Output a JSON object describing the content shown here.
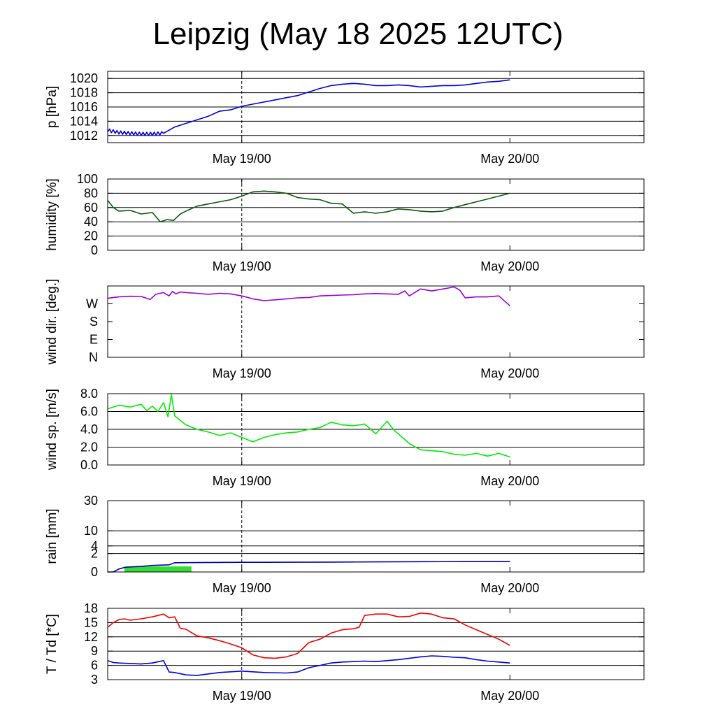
{
  "title": "Leipzig (May 18 2025 12UTC)",
  "colors": {
    "pressure": "#0000dd",
    "humidity": "#0a5a0a",
    "wind_dir": "#9900dd",
    "wind_speed": "#00ee00",
    "rain_sum": "#0000aa",
    "rain_rate": "#33dd33",
    "temperature": "#ee0000",
    "dewpoint": "#0000dd"
  },
  "chart_data": [
    {
      "type": "line",
      "ylabel": "p [hPa]",
      "x_tick_labels": [
        "May 19/00",
        "May 20/00"
      ],
      "x_ticks": [
        12,
        36
      ],
      "xlim": [
        0,
        48
      ],
      "dashed_at": 12,
      "ylim": [
        1011,
        1021
      ],
      "y_ticks": [
        1012,
        1014,
        1016,
        1018,
        1020
      ],
      "y_tick_labels": [
        "1012",
        "1014",
        "1016",
        "1018",
        "1020"
      ],
      "gridlines": [
        1012,
        1014,
        1016,
        1018,
        1020
      ],
      "series": [
        {
          "color_key": "pressure",
          "noisy_until": 5,
          "x": [
            0,
            1,
            2,
            3,
            4,
            5,
            6,
            7,
            8,
            9,
            10,
            11,
            12,
            13,
            14,
            15,
            16,
            17,
            18,
            19,
            20,
            21,
            22,
            23,
            24,
            25,
            26,
            27,
            28,
            29,
            30,
            31,
            32,
            33,
            34,
            35,
            36
          ],
          "y": [
            1012.7,
            1012.4,
            1012.3,
            1012.2,
            1012.2,
            1012.3,
            1013.2,
            1013.7,
            1014.2,
            1014.7,
            1015.4,
            1015.6,
            1016.1,
            1016.4,
            1016.7,
            1017.0,
            1017.3,
            1017.6,
            1018.1,
            1018.6,
            1019.0,
            1019.2,
            1019.3,
            1019.2,
            1019.0,
            1019.0,
            1019.1,
            1019.0,
            1018.8,
            1018.9,
            1019.0,
            1019.0,
            1019.1,
            1019.3,
            1019.5,
            1019.6,
            1019.8
          ]
        }
      ]
    },
    {
      "type": "line",
      "ylabel": "humidity [%]",
      "x_tick_labels": [
        "May 19/00",
        "May 20/00"
      ],
      "x_ticks": [
        12,
        36
      ],
      "xlim": [
        0,
        48
      ],
      "dashed_at": 12,
      "ylim": [
        0,
        100
      ],
      "y_ticks": [
        0,
        20,
        40,
        60,
        80,
        100
      ],
      "y_tick_labels": [
        "0",
        "20",
        "40",
        "60",
        "80",
        "100"
      ],
      "gridlines": [
        20,
        40,
        60,
        80
      ],
      "series": [
        {
          "color_key": "humidity",
          "x": [
            0,
            0.5,
            1,
            2,
            3,
            4,
            4.7,
            5.3,
            5.9,
            6.5,
            7,
            8,
            9,
            10,
            11,
            12,
            13,
            14,
            15,
            16,
            17,
            18,
            19,
            20,
            21,
            22,
            23,
            24,
            25,
            26,
            27,
            28,
            29,
            30,
            31,
            32,
            33,
            34,
            35,
            36
          ],
          "y": [
            70,
            60,
            55,
            56,
            51,
            53,
            40,
            43,
            42,
            51,
            55,
            62,
            65,
            68,
            71,
            76,
            82,
            83,
            82,
            80,
            74,
            72,
            71,
            66,
            65,
            52,
            54,
            52,
            54,
            58,
            57,
            55,
            54,
            55,
            60,
            64,
            68,
            72,
            76,
            80
          ]
        }
      ]
    },
    {
      "type": "line",
      "ylabel": "wind dir. [deg.]",
      "x_tick_labels": [
        "May 19/00",
        "May 20/00"
      ],
      "x_ticks": [
        12,
        36
      ],
      "xlim": [
        0,
        48
      ],
      "dashed_at": 12,
      "ylim": [
        0,
        360
      ],
      "y_ticks": [
        0,
        90,
        180,
        270
      ],
      "y_tick_labels": [
        "N",
        "E",
        "S",
        "W"
      ],
      "gridlines": [],
      "series": [
        {
          "color_key": "wind_dir",
          "x": [
            0,
            1,
            2,
            3,
            3.8,
            4.3,
            5,
            5.5,
            5.8,
            6.1,
            6.5,
            7,
            8,
            9,
            10,
            11,
            12,
            13,
            14,
            15,
            16,
            17,
            18,
            19,
            20,
            21,
            22,
            23,
            24,
            25,
            26,
            26.6,
            27,
            28,
            29,
            30,
            31,
            31.5,
            32,
            33,
            34,
            35,
            36
          ],
          "y": [
            298,
            305,
            308,
            307,
            292,
            318,
            327,
            310,
            333,
            320,
            330,
            327,
            323,
            318,
            323,
            320,
            310,
            295,
            286,
            290,
            295,
            300,
            302,
            310,
            312,
            314,
            316,
            320,
            322,
            320,
            318,
            335,
            310,
            345,
            335,
            345,
            355,
            340,
            300,
            305,
            305,
            310,
            260
          ]
        }
      ]
    },
    {
      "type": "line",
      "ylabel": "wind sp. [m/s]",
      "x_tick_labels": [
        "May 19/00",
        "May 20/00"
      ],
      "x_ticks": [
        12,
        36
      ],
      "xlim": [
        0,
        48
      ],
      "dashed_at": 12,
      "ylim": [
        0,
        8
      ],
      "y_ticks": [
        0,
        2,
        4,
        6,
        8
      ],
      "y_tick_labels": [
        "0.0",
        "2.0",
        "4.0",
        "6.0",
        "8.0"
      ],
      "gridlines": [
        2,
        4,
        6,
        8
      ],
      "series": [
        {
          "color_key": "wind_speed",
          "x": [
            0,
            1,
            2,
            3,
            3.5,
            4,
            4.5,
            5,
            5.4,
            5.7,
            6,
            7,
            8,
            9,
            10,
            11,
            12,
            13,
            14,
            15,
            16,
            17,
            18,
            19,
            20,
            21,
            22,
            23,
            24,
            25,
            25.7,
            26,
            27,
            28,
            29,
            30,
            31,
            32,
            33,
            34,
            35,
            36
          ],
          "y": [
            6.3,
            6.7,
            6.5,
            6.8,
            6.1,
            6.6,
            6.0,
            7.0,
            5.4,
            7.9,
            5.5,
            4.5,
            4.0,
            3.7,
            3.3,
            3.6,
            3.1,
            2.6,
            3.1,
            3.4,
            3.6,
            3.7,
            4.0,
            4.2,
            4.8,
            4.5,
            4.4,
            4.6,
            3.5,
            4.9,
            3.8,
            3.5,
            2.4,
            1.7,
            1.6,
            1.5,
            1.2,
            1.1,
            1.3,
            1.0,
            1.3,
            0.9
          ]
        }
      ]
    },
    {
      "type": "line",
      "ylabel": "rain [mm]",
      "x_tick_labels": [
        "May 19/00",
        "May 20/00"
      ],
      "x_ticks": [
        12,
        36
      ],
      "xlim": [
        0,
        48
      ],
      "dashed_at": 12,
      "ylim": [
        0,
        30
      ],
      "y_scale": "sqrt",
      "y_ticks": [
        0,
        2,
        4,
        10,
        30
      ],
      "y_tick_labels": [
        "0",
        "2",
        "4",
        "10",
        "30"
      ],
      "gridlines": [
        2,
        4,
        10,
        30
      ],
      "series": [
        {
          "color_key": "rain_sum",
          "x": [
            0,
            0.5,
            1,
            1.5,
            2,
            3,
            4,
            5,
            5.5,
            6,
            8,
            12,
            16,
            20,
            24,
            28,
            32,
            36
          ],
          "y": [
            0,
            0,
            0.05,
            0.12,
            0.15,
            0.18,
            0.25,
            0.28,
            0.3,
            0.5,
            0.52,
            0.55,
            0.56,
            0.57,
            0.6,
            0.62,
            0.63,
            0.64
          ]
        }
      ],
      "bars": {
        "color_key": "rain_rate",
        "x_start": 1.5,
        "x_end": 7.5,
        "value": 0.18
      }
    },
    {
      "type": "line",
      "ylabel": "T / Td [*C]",
      "x_tick_labels": [
        "May 19/00",
        "May 20/00"
      ],
      "x_ticks": [
        12,
        36
      ],
      "xlim": [
        0,
        48
      ],
      "dashed_at": 12,
      "ylim": [
        3,
        18
      ],
      "y_ticks": [
        3,
        6,
        9,
        12,
        15,
        18
      ],
      "y_tick_labels": [
        "3",
        "6",
        "9",
        "12",
        "15",
        "18"
      ],
      "gridlines": [
        6,
        9,
        12,
        15,
        18
      ],
      "series": [
        {
          "color_key": "temperature",
          "x": [
            0,
            0.5,
            1,
            1.5,
            2,
            3,
            4,
            4.5,
            5,
            5.5,
            6,
            6.5,
            7,
            8,
            9,
            10,
            11,
            12,
            13,
            14,
            15,
            16,
            17,
            18,
            19,
            20,
            21,
            22,
            22.5,
            23,
            24,
            25,
            26,
            27,
            28,
            29,
            30,
            31,
            32,
            33,
            34,
            35,
            36
          ],
          "y": [
            14.0,
            15.0,
            15.6,
            15.8,
            15.5,
            15.8,
            16.2,
            16.5,
            16.8,
            16.0,
            16.2,
            13.8,
            13.6,
            12.2,
            11.8,
            11.2,
            10.5,
            9.7,
            8.2,
            7.6,
            7.5,
            7.8,
            8.5,
            10.8,
            11.5,
            12.8,
            13.5,
            13.7,
            14.0,
            16.5,
            16.8,
            16.8,
            16.2,
            16.3,
            17.0,
            16.8,
            16.0,
            15.8,
            14.5,
            13.5,
            12.5,
            11.5,
            10.2
          ]
        },
        {
          "color_key": "dewpoint",
          "x": [
            0,
            0.5,
            1,
            2,
            3,
            4,
            5,
            5.5,
            6,
            7,
            8,
            10,
            12,
            14,
            16,
            17,
            18,
            19,
            20,
            21,
            22,
            23,
            24,
            25,
            26,
            27,
            28,
            29,
            30,
            31,
            32,
            33,
            34,
            35,
            36
          ],
          "y": [
            7.0,
            6.6,
            6.5,
            6.4,
            6.3,
            6.5,
            7.0,
            4.6,
            4.5,
            4.0,
            3.9,
            4.5,
            4.8,
            4.5,
            4.4,
            4.6,
            5.5,
            6.0,
            6.5,
            6.7,
            6.8,
            6.9,
            6.8,
            7.0,
            7.2,
            7.5,
            7.8,
            8.0,
            7.9,
            7.7,
            7.6,
            7.2,
            6.9,
            6.7,
            6.5
          ]
        }
      ]
    }
  ]
}
